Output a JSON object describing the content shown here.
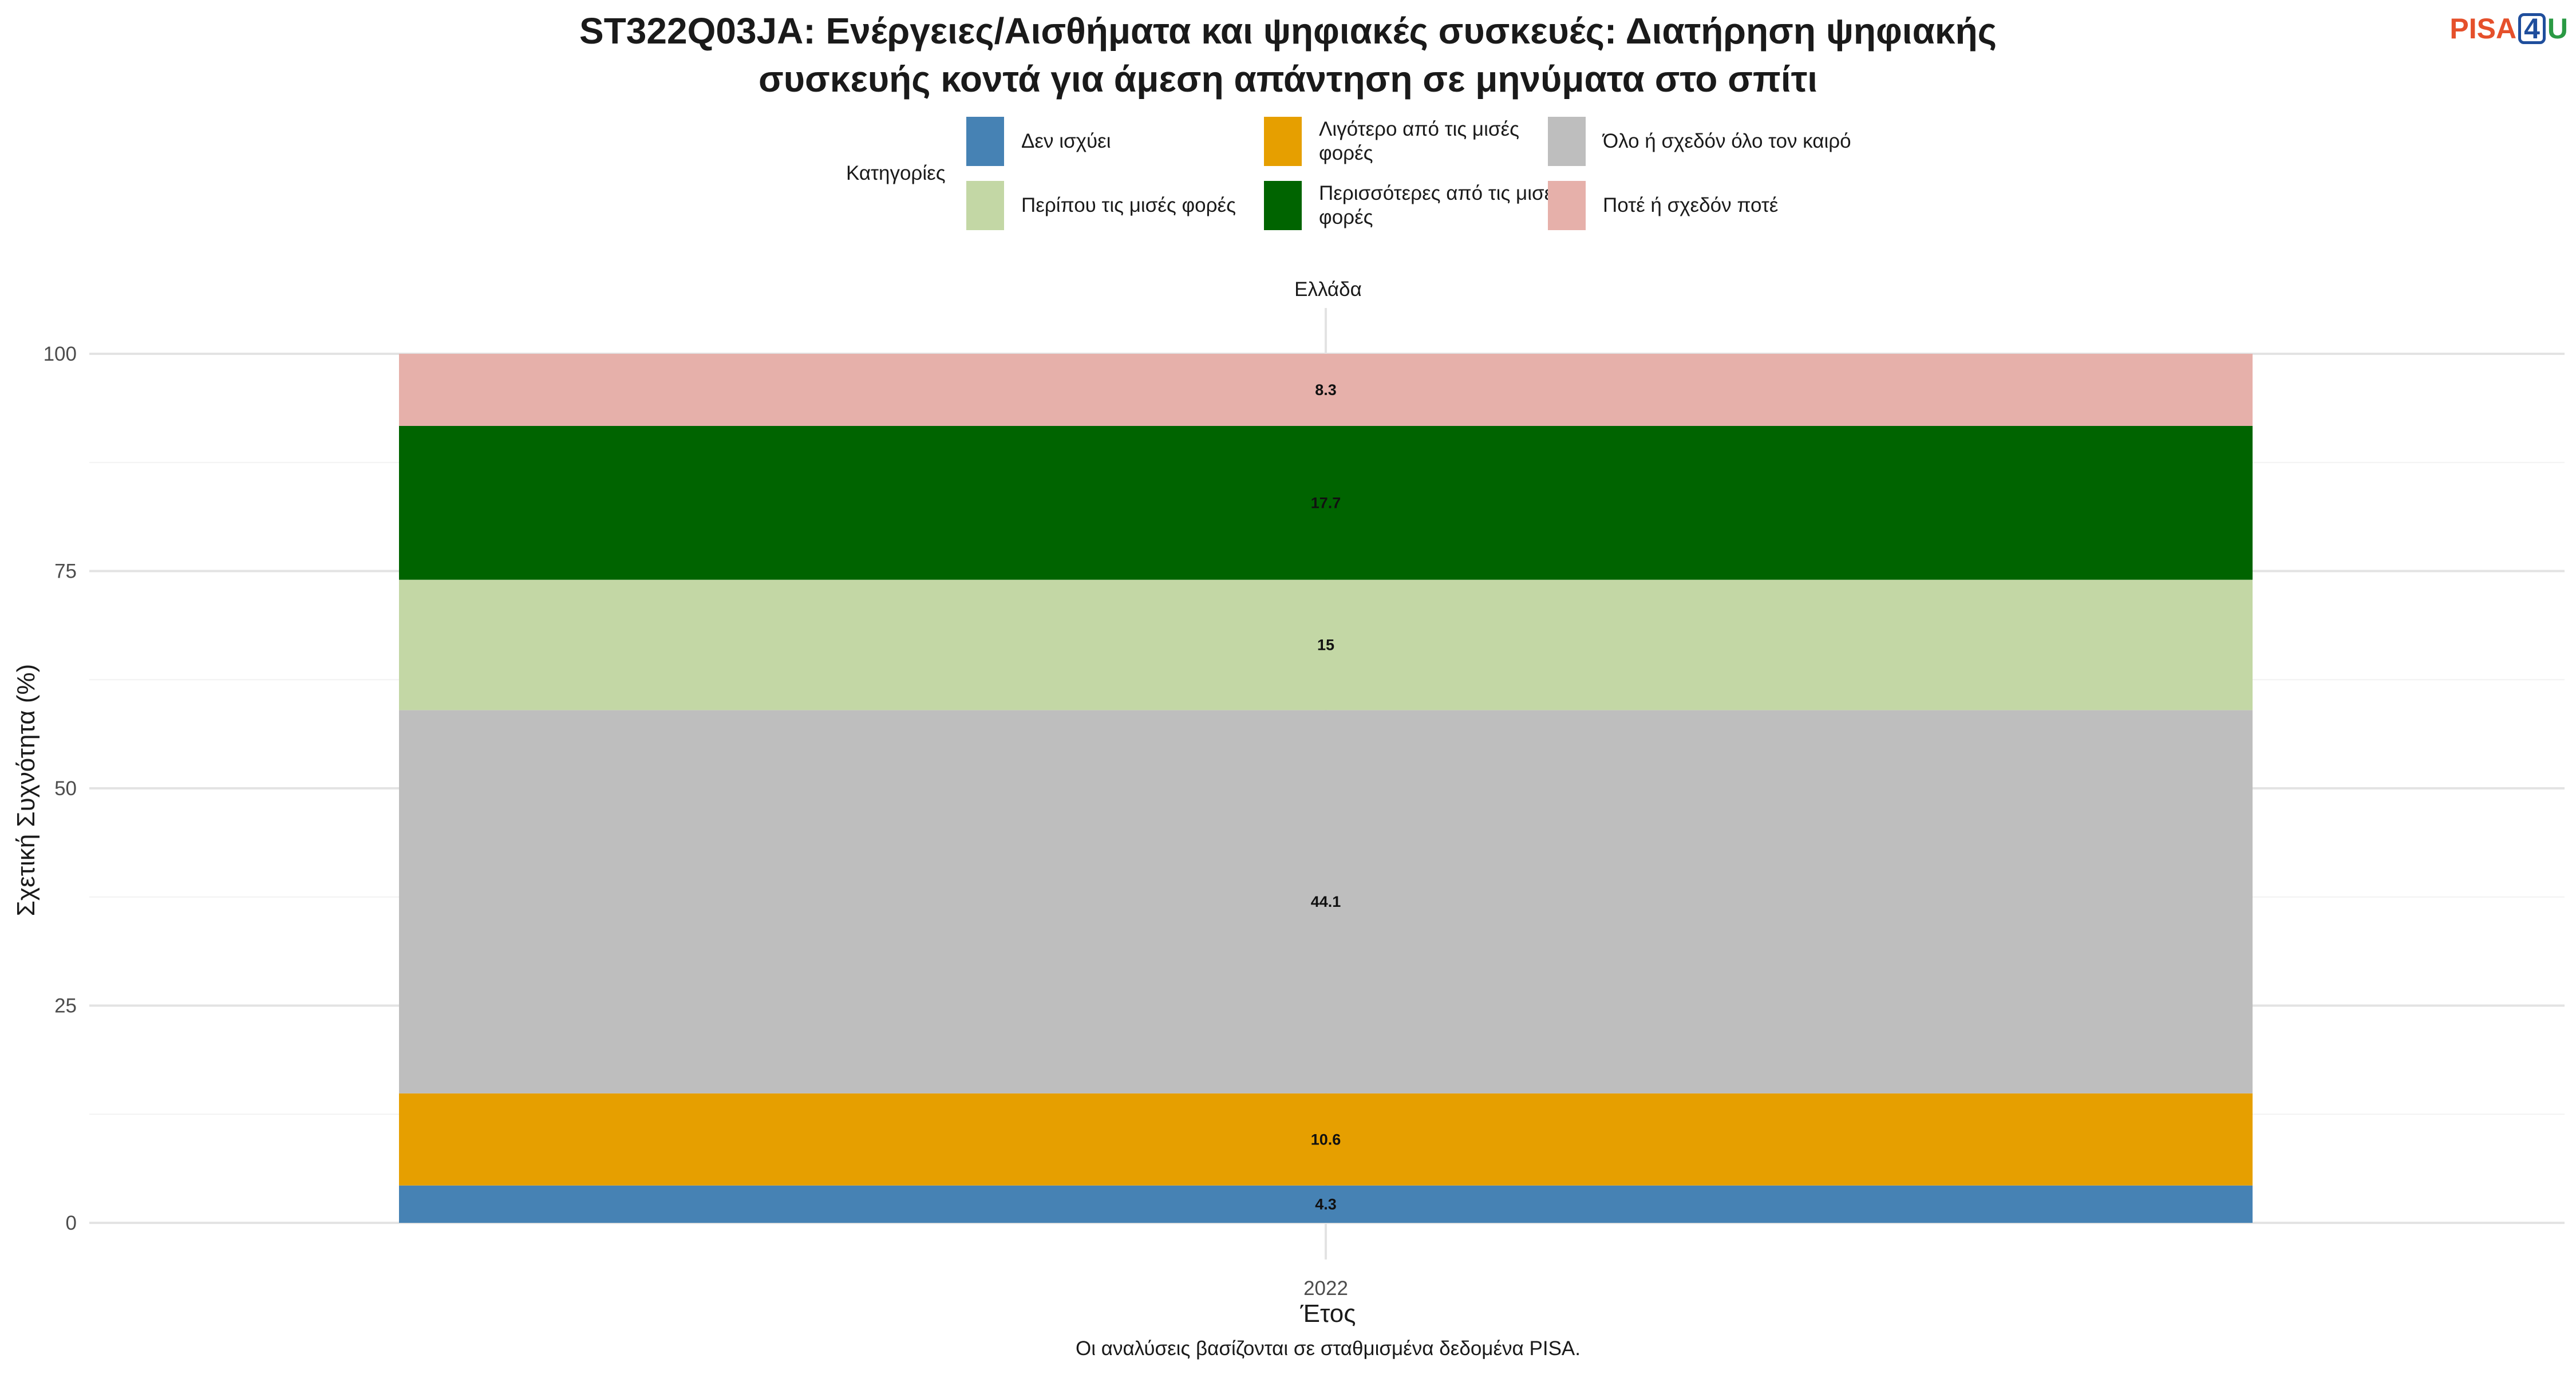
{
  "title": "ST322Q03JA: Ενέργειες/Αισθήματα και ψηφιακές συσκευές: Διατήρηση ψηφιακής συσκευής κοντά για άμεση απάντηση σε μηνύματα στο σπίτι",
  "title_lines": [
    "ST322Q03JA: Ενέργειες/Αισθήματα και ψηφιακές συσκευές: Διατήρηση ψηφιακής",
    "συσκευής κοντά για άμεση απάντηση σε μηνύματα στο σπίτι"
  ],
  "logo": {
    "part1": "PISA",
    "part2": "4",
    "part3": "U"
  },
  "caption": "Οι αναλύσεις βασίζονται σε σταθμισμένα δεδομένα PISA.",
  "chart_data": {
    "type": "bar",
    "stacked": true,
    "facet_label": "Ελλάδα",
    "categories": [
      "2022"
    ],
    "xlabel": "Έτος",
    "ylabel": "Σχετική Συχνότητα (%)",
    "ylim": [
      0,
      100
    ],
    "yticks": [
      0,
      25,
      50,
      75,
      100
    ],
    "grid": true,
    "legend": {
      "title": "Κατηγορίες",
      "position": "top"
    },
    "series": [
      {
        "name": "Δεν ισχύει",
        "values": [
          4.3
        ],
        "color": "#4682b4"
      },
      {
        "name": "Λιγότερο από τις μισές φορές",
        "values": [
          10.6
        ],
        "color": "#e69f00"
      },
      {
        "name": "Όλο ή σχεδόν όλο τον καιρό",
        "values": [
          44.1
        ],
        "color": "#bebebe"
      },
      {
        "name": "Περίπου τις μισές φορές",
        "values": [
          15
        ],
        "color": "#c3d7a5"
      },
      {
        "name": "Περισσότερες από τις μισές φορές",
        "values": [
          17.7
        ],
        "color": "#006400"
      },
      {
        "name": "Ποτέ ή σχεδόν ποτέ",
        "values": [
          8.3
        ],
        "color": "#e6b0aa"
      }
    ],
    "data_labels": [
      "4.3",
      "10.6",
      "44.1",
      "15",
      "17.7",
      "8.3"
    ]
  }
}
